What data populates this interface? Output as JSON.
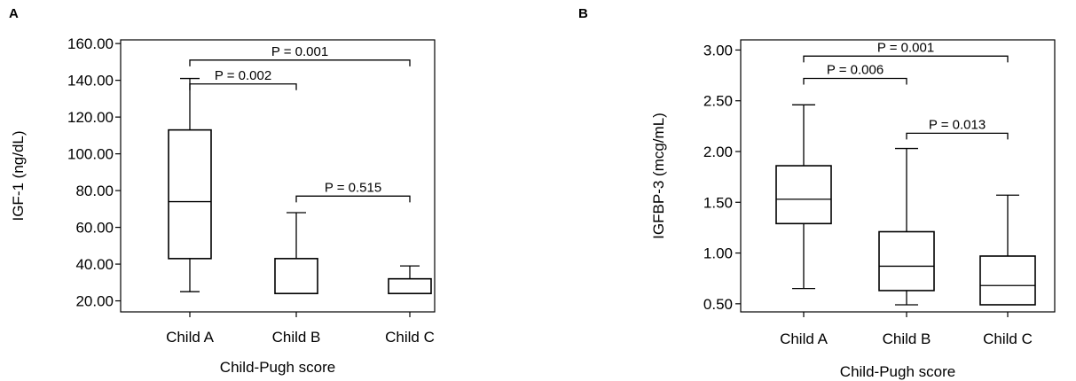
{
  "chart_data": [
    {
      "panel": "A",
      "type": "boxplot",
      "xlabel": "Child-Pugh score",
      "ylabel": "IGF-1  (ng/dL)",
      "ylim": [
        14,
        162
      ],
      "y_ticks": [
        20,
        40,
        60,
        80,
        100,
        120,
        140,
        160
      ],
      "y_tick_labels": [
        "20.00",
        "40.00",
        "60.00",
        "80.00",
        "100.00",
        "120.00",
        "140.00",
        "160.00"
      ],
      "categories": [
        "Child A",
        "Child B",
        "Child C"
      ],
      "boxes": [
        {
          "category": "Child A",
          "min": 25,
          "q1": 43,
          "median": 74,
          "q3": 113,
          "max": 141
        },
        {
          "category": "Child B",
          "min": 24,
          "q1": 24,
          "median": 24,
          "q3": 43,
          "max": 68
        },
        {
          "category": "Child C",
          "min": 24,
          "q1": 24,
          "median": 24,
          "q3": 32,
          "max": 39
        }
      ],
      "comparisons": [
        {
          "from": 0,
          "to": 2,
          "label": "P = 0.001",
          "y": 151
        },
        {
          "from": 0,
          "to": 1,
          "label": "P = 0.002",
          "y": 138
        },
        {
          "from": 1,
          "to": 2,
          "label": "P = 0.515",
          "y": 77
        }
      ]
    },
    {
      "panel": "B",
      "type": "boxplot",
      "xlabel": "Child-Pugh score",
      "ylabel": "IGFBP-3 (mcg/mL)",
      "ylim": [
        0.42,
        3.1
      ],
      "y_ticks": [
        0.5,
        1.0,
        1.5,
        2.0,
        2.5,
        3.0
      ],
      "y_tick_labels": [
        "0.50",
        "1.00",
        "1.50",
        "2.00",
        "2.50",
        "3.00"
      ],
      "categories": [
        "Child A",
        "Child B",
        "Child C"
      ],
      "boxes": [
        {
          "category": "Child A",
          "min": 0.65,
          "q1": 1.29,
          "median": 1.53,
          "q3": 1.86,
          "max": 2.46
        },
        {
          "category": "Child B",
          "min": 0.49,
          "q1": 0.63,
          "median": 0.87,
          "q3": 1.21,
          "max": 2.03
        },
        {
          "category": "Child C",
          "min": 0.49,
          "q1": 0.49,
          "median": 0.68,
          "q3": 0.97,
          "max": 1.57
        }
      ],
      "comparisons": [
        {
          "from": 0,
          "to": 2,
          "label": "P = 0.001",
          "y": 2.94
        },
        {
          "from": 0,
          "to": 1,
          "label": "P = 0.006",
          "y": 2.72
        },
        {
          "from": 1,
          "to": 2,
          "label": "P = 0.013",
          "y": 2.18
        }
      ]
    }
  ]
}
